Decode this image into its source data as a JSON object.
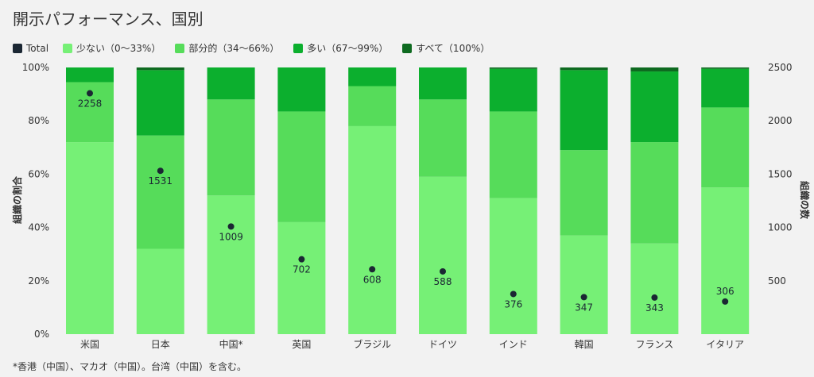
{
  "title": "開示パフォーマンス、国別",
  "footnote": "*香港（中国）、マカオ（中国）。台湾（中国）を含む。",
  "colors": {
    "total": "#1b2733",
    "low": "#76f076",
    "partial": "#56dc5a",
    "many": "#0caf2e",
    "all": "#0e6a20",
    "background": "#f2f2f2",
    "axis_text": "#333333"
  },
  "chart_data": {
    "type": "bar",
    "stacked": true,
    "categories": [
      "米国",
      "日本",
      "中国*",
      "英国",
      "ブラジル",
      "ドイツ",
      "インド",
      "韓国",
      "フランス",
      "イタリア"
    ],
    "series": [
      {
        "name": "少ない（0〜33%）",
        "key": "low",
        "values": [
          72,
          32,
          52,
          42,
          78,
          59,
          51,
          37,
          34,
          55
        ]
      },
      {
        "name": "部分的（34〜66%）",
        "key": "partial",
        "values": [
          22.5,
          42.5,
          36,
          41.5,
          15,
          29,
          32.5,
          32,
          38,
          30
        ]
      },
      {
        "name": "多い（67〜99%）",
        "key": "many",
        "values": [
          5.5,
          24.5,
          12,
          16.5,
          7,
          12,
          16,
          30,
          26.5,
          14.5
        ]
      },
      {
        "name": "すべて（100%）",
        "key": "all",
        "values": [
          0,
          1,
          0,
          0,
          0,
          0,
          0.5,
          1,
          1.5,
          0.5
        ]
      }
    ],
    "total": {
      "name": "Total",
      "values": [
        2258,
        1531,
        1009,
        702,
        608,
        588,
        376,
        347,
        343,
        306
      ]
    },
    "ylabel": "組織の割合",
    "y2label": "組織の数",
    "ylim": [
      0,
      100
    ],
    "y2lim": [
      0,
      2500
    ],
    "yticks": [
      "0%",
      "20%",
      "40%",
      "60%",
      "80%",
      "100%"
    ],
    "y2ticks": [
      "500",
      "1000",
      "1500",
      "2000",
      "2500"
    ],
    "y2tick_values": [
      500,
      1000,
      1500,
      2000,
      2500
    ],
    "legend_position": "top-left",
    "grid": false
  }
}
